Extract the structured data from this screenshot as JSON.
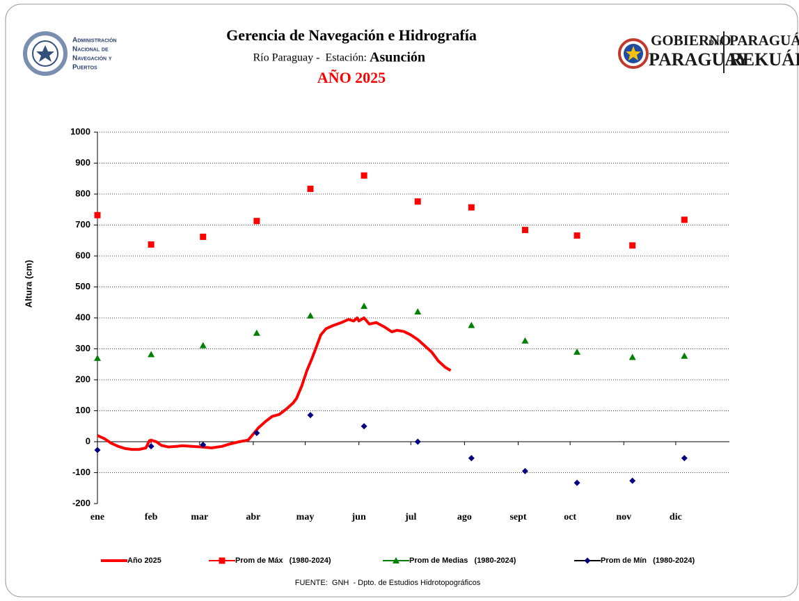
{
  "header": {
    "left_logo": [
      "Administración",
      "Nacional de",
      "Navegación y",
      "Puertos"
    ],
    "right_logo": {
      "line1": "GOBIERNO",
      "small": "DEL",
      "line2": "PARAGUAY",
      "guarani1": "PARAGUÁI",
      "guarani2": "REKUÁI"
    },
    "title": "Gerencia de Navegación e Hidrografía",
    "subtitle": "Río Paraguay -  Estación:",
    "station": "Asunción",
    "year": "AÑO 2025"
  },
  "chart_data": {
    "type": "line",
    "y_label": "Altura (cm)",
    "xlim": [
      0,
      365
    ],
    "xticks": [
      {
        "value": 0,
        "label": "ene"
      },
      {
        "value": 31,
        "label": "feb"
      },
      {
        "value": 59,
        "label": "mar"
      },
      {
        "value": 90,
        "label": "abr"
      },
      {
        "value": 120,
        "label": "may"
      },
      {
        "value": 151,
        "label": "jun"
      },
      {
        "value": 181,
        "label": "jul"
      },
      {
        "value": 212,
        "label": "ago"
      },
      {
        "value": 243,
        "label": "sept"
      },
      {
        "value": 273,
        "label": "oct"
      },
      {
        "value": 304,
        "label": "nov"
      },
      {
        "value": 334,
        "label": "dic"
      }
    ],
    "ylim": [
      -200,
      1000
    ],
    "yticks": [
      -200,
      -100,
      0,
      100,
      200,
      300,
      400,
      500,
      600,
      700,
      800,
      900,
      1000
    ],
    "grid": true,
    "legend": "bottom",
    "series": [
      {
        "name": "Año 2025",
        "color": "#ff0000",
        "marker": "none",
        "x": [
          0,
          4,
          8,
          12,
          16,
          20,
          24,
          28,
          30,
          31,
          34,
          37,
          41,
          46,
          49,
          54,
          60,
          66,
          72,
          76,
          82,
          87,
          90,
          93,
          97,
          101,
          105,
          109,
          113,
          115,
          118,
          121,
          124,
          127,
          129,
          132,
          136,
          141,
          145,
          148,
          150,
          151,
          154,
          157,
          161,
          166,
          170,
          173,
          177,
          181,
          185,
          189,
          193,
          197,
          201,
          204
        ],
        "values": [
          20,
          10,
          -5,
          -15,
          -22,
          -25,
          -25,
          -20,
          3,
          5,
          0,
          -12,
          -17,
          -15,
          -13,
          -15,
          -17,
          -20,
          -15,
          -8,
          0,
          5,
          25,
          45,
          65,
          82,
          88,
          105,
          125,
          140,
          180,
          230,
          270,
          315,
          345,
          365,
          375,
          385,
          395,
          390,
          400,
          390,
          400,
          380,
          385,
          370,
          355,
          360,
          356,
          345,
          330,
          310,
          290,
          260,
          240,
          230
        ]
      },
      {
        "name": "Prom de Máx   (1980-2024)",
        "color": "#ff0000",
        "marker": "square",
        "x": [
          0,
          31,
          61,
          92,
          123,
          154,
          185,
          216,
          247,
          277,
          309,
          339
        ],
        "values": [
          732,
          637,
          662,
          713,
          817,
          860,
          776,
          757,
          684,
          666,
          634,
          717
        ]
      },
      {
        "name": "Prom de Medias   (1980-2024)",
        "color": "#008000",
        "marker": "triangle",
        "x": [
          0,
          31,
          61,
          92,
          123,
          154,
          185,
          216,
          247,
          277,
          309,
          339
        ],
        "values": [
          270,
          282,
          311,
          351,
          407,
          438,
          420,
          376,
          326,
          290,
          273,
          277
        ]
      },
      {
        "name": "Prom de Mín   (1980-2024)",
        "color": "#000080",
        "marker": "diamond",
        "x": [
          0,
          31,
          61,
          92,
          123,
          154,
          185,
          216,
          247,
          277,
          309,
          339
        ],
        "values": [
          -27,
          -15,
          -10,
          28,
          86,
          50,
          0,
          -53,
          -95,
          -133,
          -126,
          -53
        ]
      }
    ]
  },
  "source": "FUENTE:  GNH  - Dpto. de Estudios Hidrotopográficos"
}
